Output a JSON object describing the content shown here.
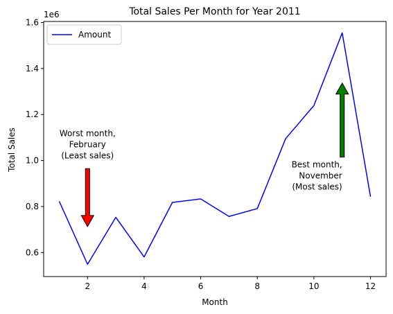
{
  "chart_data": {
    "type": "line",
    "title": "Total Sales Per Month for Year 2011",
    "xlabel": "Month",
    "ylabel": "Total Sales",
    "y_offset_label": "1e6",
    "xlim": [
      0.45,
      12.55
    ],
    "ylim": [
      0.4955,
      1.6045
    ],
    "x_ticks": [
      2,
      4,
      6,
      8,
      10,
      12
    ],
    "x_tick_labels": [
      "2",
      "4",
      "6",
      "8",
      "10",
      "12"
    ],
    "y_ticks": [
      0.6,
      0.8,
      1.0,
      1.2,
      1.4,
      1.6
    ],
    "y_tick_labels": [
      "0.6",
      "0.8",
      "1.0",
      "1.2",
      "1.4",
      "1.6"
    ],
    "grid": false,
    "legend": {
      "position": "top-left"
    },
    "series": [
      {
        "name": "Amount",
        "color": "#0000ff",
        "x": [
          1,
          2,
          3,
          4,
          5,
          6,
          7,
          8,
          9,
          10,
          11,
          12
        ],
        "y": [
          0.823,
          0.549,
          0.753,
          0.581,
          0.818,
          0.833,
          0.757,
          0.791,
          1.095,
          1.239,
          1.555,
          0.843
        ]
      }
    ],
    "annotations": [
      {
        "lines": [
          "Worst month,",
          "February",
          "(Least sales)"
        ],
        "text_x": 2.0,
        "text_y": 1.105,
        "text_anchor": "middle",
        "arrow_from": [
          2,
          0.965
        ],
        "arrow_to": [
          2,
          0.713
        ],
        "arrow_color": "#ff0000"
      },
      {
        "lines": [
          "Best month,",
          "November",
          "(Most sales)"
        ],
        "text_x": 11.0,
        "text_y": 0.97,
        "text_anchor": "end",
        "arrow_from": [
          11,
          1.015
        ],
        "arrow_to": [
          11,
          1.337
        ],
        "arrow_color": "#008000"
      }
    ]
  }
}
